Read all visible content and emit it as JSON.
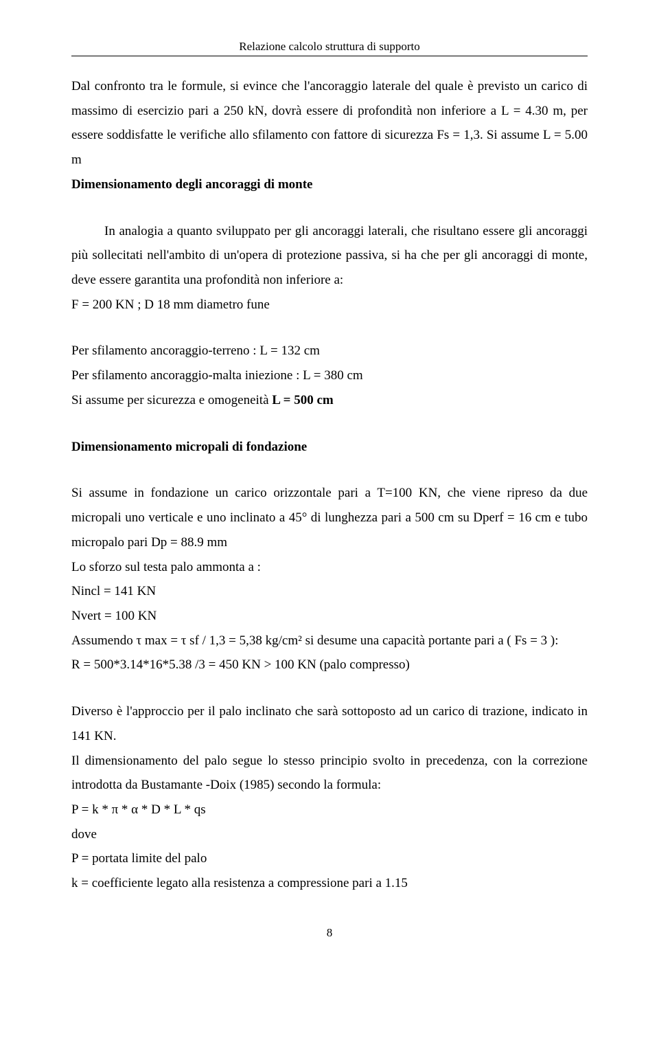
{
  "header": {
    "title": "Relazione calcolo struttura di supporto"
  },
  "p1": {
    "line1": "Dal confronto tra le formule, si evince che l'ancoraggio laterale del quale è previsto un carico di massimo di esercizio pari a 250 kN, dovrà essere di profondità non inferiore a L = 4.30 m, per essere soddisfatte le verifiche allo sfilamento con fattore di sicurezza Fs = 1,3. Si assume L = 5.00 m"
  },
  "h1": "Dimensionamento degli ancoraggi di monte",
  "p2": {
    "text": "In analogia a quanto sviluppato per gli ancoraggi laterali, che risultano essere gli ancoraggi più sollecitati nell'ambito di un'opera di protezione passiva, si ha che per gli ancoraggi di monte, deve essere garantita una profondità non inferiore a:"
  },
  "p2b": "F = 200 KN ; D 18 mm diametro fune",
  "p3a": "Per sfilamento ancoraggio-terreno : L = 132 cm",
  "p3b": "Per sfilamento ancoraggio-malta iniezione : L =  380 cm",
  "p3c_prefix": "Si assume per sicurezza e omogeneità  ",
  "p3c_bold": "L = 500 cm",
  "h2": "Dimensionamento micropali di fondazione",
  "p4": "Si assume in fondazione un carico orizzontale pari  a T=100 KN, che viene ripreso da due micropali uno verticale e uno inclinato a 45° di lunghezza pari a 500 cm su Dperf = 16 cm e tubo micropalo pari Dp = 88.9 mm",
  "p5": "Lo sforzo sul testa palo ammonta a :",
  "p6": "Nincl = 141 KN",
  "p7": "Nvert = 100 KN",
  "p8": "Assumendo τ max = τ sf / 1,3 = 5,38 kg/cm² si desume una capacità portante pari a ( Fs = 3 ):",
  "p9": "R = 500*3.14*16*5.38 /3 = 450 KN > 100 KN (palo compresso)",
  "p10": "Diverso è l'approccio per il palo inclinato che sarà sottoposto ad un carico di trazione, indicato in 141 KN.",
  "p11": "Il dimensionamento del palo segue lo stesso principio svolto in precedenza, con la correzione introdotta da Bustamante -Doix (1985) secondo la formula:",
  "p12": "P = k * π * α * D * L * qs",
  "p13": "dove",
  "p14": "P = portata limite del palo",
  "p15": "k = coefficiente legato alla resistenza a compressione pari a 1.15",
  "footer": {
    "page_number": "8"
  }
}
